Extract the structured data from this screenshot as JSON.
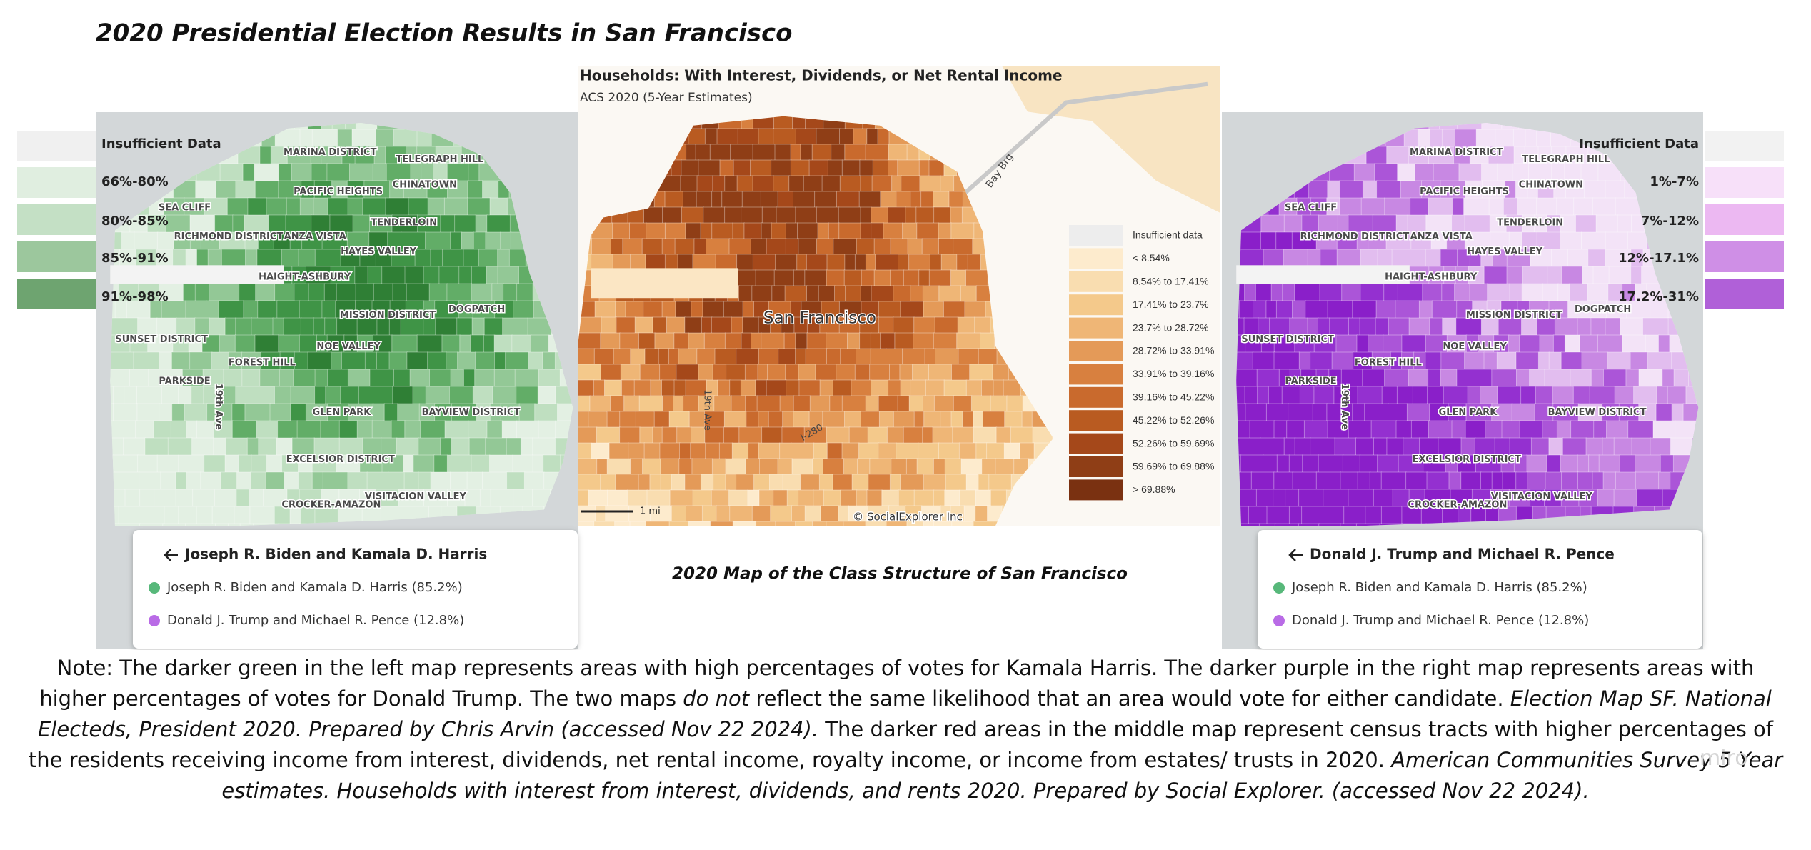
{
  "title": "2020 Presidential Election Results in San Francisco",
  "left_map": {
    "legend": [
      "Insufficient Data",
      "66%-80%",
      "80%-85%",
      "85%-91%",
      "91%-98%"
    ],
    "labels": [
      "MARINA DISTRICT",
      "TELEGRAPH HILL",
      "PACIFIC HEIGHTS",
      "CHINATOWN",
      "SEA CLIFF",
      "RICHMOND DISTRICT",
      "TENDERLOIN",
      "ANZA VISTA",
      "HAYES VALLEY",
      "HAIGHT-ASHBURY",
      "MISSION DISTRICT",
      "DOGPATCH",
      "SUNSET DISTRICT",
      "FOREST HILL",
      "NOE VALLEY",
      "PARKSIDE",
      "19th Ave",
      "GLEN PARK",
      "BAYVIEW DISTRICT",
      "EXCELSIOR DISTRICT",
      "VISITACION VALLEY",
      "CROCKER-AMAZON"
    ],
    "popup": {
      "header": "Joseph R. Biden and Kamala D. Harris",
      "items": [
        "Joseph R. Biden and Kamala D. Harris (85.2%)",
        "Donald J. Trump and Michael R. Pence (12.8%)"
      ]
    }
  },
  "middle_map": {
    "title": "Households: With Interest, Dividends, or Net Rental Income",
    "subtitle": "ACS 2020 (5-Year Estimates)",
    "legend": [
      "Insufficient data",
      "< 8.54%",
      "8.54% to 17.41%",
      "17.41% to 23.7%",
      "23.7% to 28.72%",
      "28.72% to 33.91%",
      "33.91% to 39.16%",
      "39.16% to 45.22%",
      "45.22% to 52.26%",
      "52.26% to 59.69%",
      "59.69% to 69.88%",
      "> 69.88%"
    ],
    "labels": [
      "San Francisco",
      "Bay Brg",
      "19th Ave",
      "I-280",
      "1 mi",
      "© SocialExplorer Inc"
    ],
    "caption": "2020 Map of the Class Structure of San Francisco"
  },
  "right_map": {
    "legend": [
      "Insufficient Data",
      "1%-7%",
      "7%-12%",
      "12%-17.1%",
      "17.2%-31%"
    ],
    "labels": [
      "MARINA DISTRICT",
      "TELEGRAPH HILL",
      "PACIFIC HEIGHTS",
      "CHINATOWN",
      "SEA CLIFF",
      "RICHMOND DISTRICT",
      "TENDERLOIN",
      "ANZA VISTA",
      "HAYES VALLEY",
      "HAIGHT-ASHBURY",
      "MISSION DISTRICT",
      "DOGPATCH",
      "SUNSET DISTRICT",
      "FOREST HILL",
      "NOE VALLEY",
      "PARKSIDE",
      "19th Ave",
      "GLEN PARK",
      "BAYVIEW DISTRICT",
      "EXCELSIOR DISTRICT",
      "VISITACION VALLEY",
      "CROCKER-AMAZON"
    ],
    "popup": {
      "header": "Donald J. Trump and Michael R. Pence",
      "items": [
        "Joseph R. Biden and Kamala D. Harris (85.2%)",
        "Donald J. Trump and Michael R. Pence (12.8%)"
      ]
    }
  },
  "note": {
    "parts": [
      "Note: The darker green in the left map represents areas with high percentages of votes for Kamala Harris. The darker purple in the right map represents areas with higher percentages of votes for Donald Trump. The two maps ",
      "do not",
      " reflect the same likelihood that an area would vote for either candidate. ",
      "Election Map SF. National Electeds, President 2020. Prepared by Chris Arvin (accessed Nov 22 2024).",
      " The darker red areas in the middle map represent census tracts with higher percentages of the residents receiving income from interest, dividends, net rental income, royalty income, or income from estates/ trusts in 2020. ",
      "American Communities Survey 5 Year estimates. Households with interest from interest, dividends, and rents 2020. Prepared by Social Explorer. (accessed Nov 22 2024)."
    ]
  },
  "watermark": "miro"
}
